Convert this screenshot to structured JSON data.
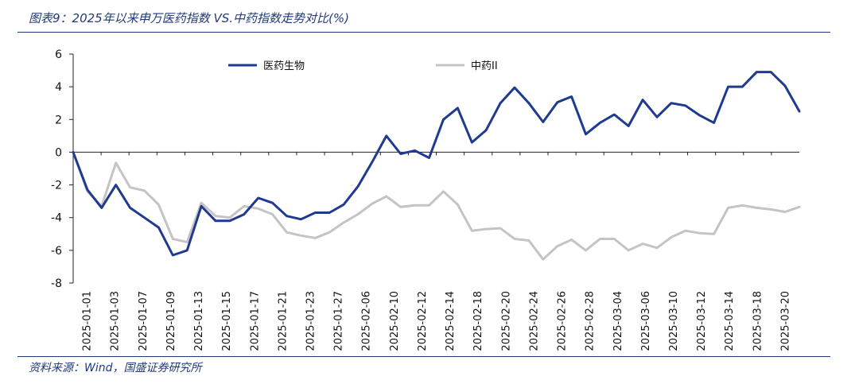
{
  "title": "图表9：2025年以来申万医药指数 VS.中药指数走势对比(%)",
  "source": "资料来源：Wind，国盛证券研究所",
  "colors": {
    "series_a": "#1f3a8f",
    "series_b": "#c4c4c4",
    "accent": "#1f3a78"
  },
  "chart_data": {
    "type": "line",
    "title": "2025年以来申万医药指数 VS.中药指数走势对比(%)",
    "ylim": [
      -8,
      6
    ],
    "yticks": [
      6,
      4,
      2,
      0,
      -2,
      -4,
      -6,
      -8
    ],
    "grid": false,
    "legend_position": "top",
    "x_tick_labels": [
      "2025-01-01",
      "2025-01-03",
      "2025-01-07",
      "2025-01-09",
      "2025-01-13",
      "2025-01-15",
      "2025-01-17",
      "2025-01-21",
      "2025-01-23",
      "2025-01-27",
      "2025-02-06",
      "2025-02-10",
      "2025-02-12",
      "2025-02-14",
      "2025-02-18",
      "2025-02-20",
      "2025-02-24",
      "2025-02-26",
      "2025-02-28",
      "2025-03-04",
      "2025-03-06",
      "2025-03-10",
      "2025-03-12",
      "2025-03-14",
      "2025-03-18",
      "2025-03-20"
    ],
    "series": [
      {
        "name": "医药生物",
        "values": [
          0,
          -2.3,
          -3.4,
          -2.0,
          -3.4,
          -4.0,
          -4.6,
          -6.3,
          -6.0,
          -3.3,
          -4.2,
          -4.2,
          -3.8,
          -2.8,
          -3.1,
          -3.9,
          -4.1,
          -3.7,
          -3.7,
          -3.2,
          -2.1,
          -0.6,
          1.0,
          -0.1,
          0.1,
          -0.35,
          2.0,
          2.7,
          0.6,
          1.35,
          3.0,
          3.95,
          3.0,
          1.85,
          3.05,
          3.4,
          1.1,
          1.8,
          2.3,
          1.6,
          3.2,
          2.15,
          3.0,
          2.85,
          2.25,
          1.8,
          4.0,
          4.0,
          4.9,
          4.9,
          4.05,
          2.5
        ]
      },
      {
        "name": "中药II",
        "values": [
          0,
          -2.4,
          -3.3,
          -0.65,
          -2.15,
          -2.35,
          -3.2,
          -5.3,
          -5.5,
          -3.1,
          -3.9,
          -4.0,
          -3.3,
          -3.45,
          -3.8,
          -4.9,
          -5.1,
          -5.25,
          -4.9,
          -4.3,
          -3.8,
          -3.15,
          -2.7,
          -3.35,
          -3.25,
          -3.25,
          -2.4,
          -3.2,
          -4.8,
          -4.7,
          -4.65,
          -5.3,
          -5.4,
          -6.55,
          -5.75,
          -5.35,
          -6.0,
          -5.3,
          -5.3,
          -6.0,
          -5.6,
          -5.85,
          -5.2,
          -4.8,
          -4.95,
          -5.0,
          -3.4,
          -3.25,
          -3.4,
          -3.5,
          -3.65,
          -3.35
        ]
      }
    ]
  }
}
